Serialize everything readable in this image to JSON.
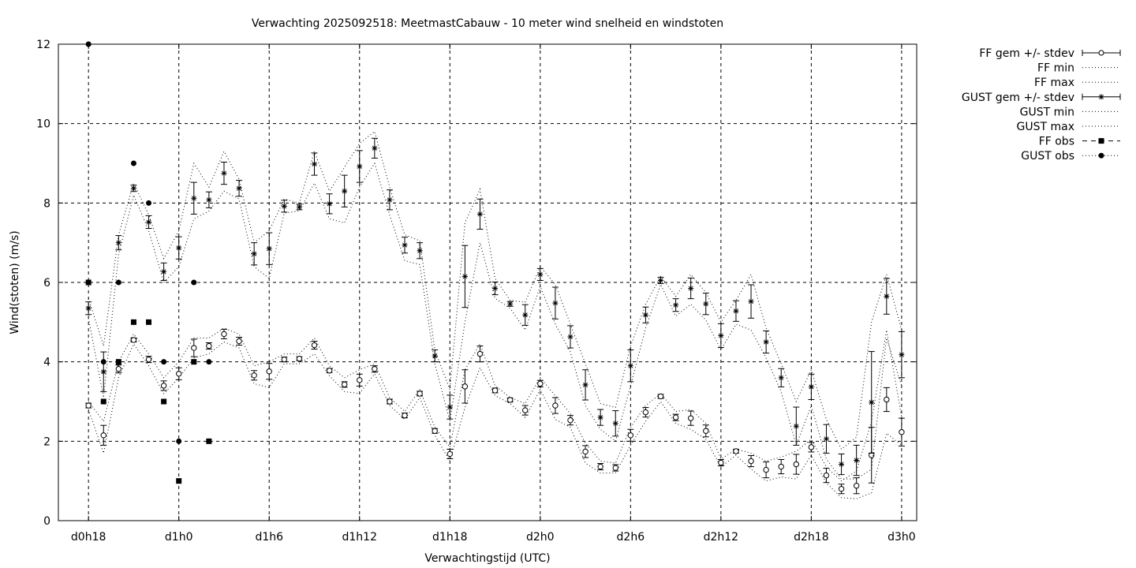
{
  "chart_data": {
    "type": "line",
    "title": "Verwachting 2025092518: MeetmastCabauw - 10 meter wind snelheid en windstoten",
    "xlabel": "Verwachtingstijd (UTC)",
    "ylabel": "Wind(stoten) (m/s)",
    "ylim": [
      0,
      12
    ],
    "xlim_hours": [
      -2,
      55
    ],
    "x_ticks": [
      {
        "hour": 0,
        "label": "d0h18"
      },
      {
        "hour": 6,
        "label": "d1h0"
      },
      {
        "hour": 12,
        "label": "d1h6"
      },
      {
        "hour": 18,
        "label": "d1h12"
      },
      {
        "hour": 24,
        "label": "d1h18"
      },
      {
        "hour": 30,
        "label": "d2h0"
      },
      {
        "hour": 36,
        "label": "d2h6"
      },
      {
        "hour": 42,
        "label": "d2h12"
      },
      {
        "hour": 48,
        "label": "d2h18"
      },
      {
        "hour": 54,
        "label": "d3h0"
      }
    ],
    "y_ticks": [
      0,
      2,
      4,
      6,
      8,
      10,
      12
    ],
    "grid": true,
    "legend_position": "outside-right",
    "x_unit": "hours since d0h18",
    "legend": [
      {
        "key": "ff_mean",
        "label": "FF gem +/- stdev"
      },
      {
        "key": "ff_min",
        "label": "FF min"
      },
      {
        "key": "ff_max",
        "label": "FF max"
      },
      {
        "key": "gust_mean",
        "label": "GUST gem +/- stdev"
      },
      {
        "key": "gust_min",
        "label": "GUST min"
      },
      {
        "key": "gust_max",
        "label": "GUST max"
      },
      {
        "key": "ff_obs",
        "label": "FF obs"
      },
      {
        "key": "gust_obs",
        "label": "GUST obs"
      }
    ],
    "ff": {
      "x": [
        0,
        1,
        2,
        3,
        4,
        5,
        6,
        7,
        8,
        9,
        10,
        11,
        12,
        13,
        14,
        15,
        16,
        17,
        18,
        19,
        20,
        21,
        22,
        23,
        24,
        25,
        26,
        27,
        28,
        29,
        30,
        31,
        32,
        33,
        34,
        35,
        36,
        37,
        38,
        39,
        40,
        41,
        42,
        43,
        44,
        45,
        46,
        47,
        48,
        49,
        50,
        51,
        52,
        53,
        54
      ],
      "mean": [
        2.9,
        2.15,
        3.82,
        4.55,
        4.06,
        3.4,
        3.7,
        4.35,
        4.4,
        4.7,
        4.52,
        3.66,
        3.76,
        4.06,
        4.08,
        4.42,
        3.78,
        3.43,
        3.54,
        3.82,
        3.0,
        2.65,
        3.2,
        2.26,
        1.68,
        3.38,
        4.2,
        3.28,
        3.04,
        2.78,
        3.45,
        2.9,
        2.53,
        1.74,
        1.36,
        1.33,
        2.15,
        2.73,
        3.13,
        2.6,
        2.58,
        2.26,
        1.46,
        1.75,
        1.5,
        1.28,
        1.36,
        1.42,
        1.85,
        1.14,
        0.8,
        0.88,
        1.65,
        3.05,
        2.23
      ],
      "stdev": [
        0.06,
        0.25,
        0.1,
        0.05,
        0.08,
        0.12,
        0.15,
        0.22,
        0.08,
        0.12,
        0.1,
        0.12,
        0.2,
        0.06,
        0.05,
        0.1,
        0.05,
        0.07,
        0.15,
        0.08,
        0.06,
        0.06,
        0.06,
        0.06,
        0.12,
        0.42,
        0.2,
        0.06,
        0.05,
        0.12,
        0.08,
        0.2,
        0.12,
        0.15,
        0.08,
        0.08,
        0.15,
        0.12,
        0.05,
        0.08,
        0.18,
        0.15,
        0.08,
        0.05,
        0.14,
        0.2,
        0.18,
        0.25,
        0.12,
        0.18,
        0.12,
        0.2,
        0.7,
        0.3,
        0.35
      ],
      "min": [
        2.8,
        1.7,
        3.6,
        4.45,
        3.9,
        3.2,
        3.6,
        4.1,
        4.2,
        4.5,
        4.35,
        3.45,
        3.35,
        3.95,
        3.95,
        4.2,
        3.65,
        3.25,
        3.2,
        3.7,
        2.9,
        2.55,
        3.1,
        2.15,
        1.5,
        2.85,
        3.85,
        3.15,
        2.95,
        2.6,
        3.3,
        2.55,
        2.35,
        1.45,
        1.2,
        1.2,
        1.9,
        2.5,
        3.0,
        2.45,
        2.3,
        2.05,
        1.35,
        1.65,
        1.3,
        1.0,
        1.1,
        1.05,
        1.65,
        0.95,
        0.58,
        0.55,
        0.7,
        2.2,
        1.9
      ],
      "max": [
        3.0,
        2.5,
        4.0,
        4.7,
        4.2,
        3.6,
        4.0,
        4.6,
        4.6,
        4.85,
        4.7,
        3.9,
        4.0,
        4.2,
        4.2,
        4.6,
        3.9,
        3.6,
        3.8,
        3.95,
        3.1,
        2.75,
        3.3,
        2.35,
        1.85,
        3.8,
        4.45,
        3.4,
        3.1,
        2.95,
        3.6,
        3.15,
        2.7,
        1.95,
        1.5,
        1.45,
        2.35,
        2.9,
        3.2,
        2.75,
        2.8,
        2.45,
        1.55,
        1.8,
        1.7,
        1.5,
        1.6,
        1.75,
        2.05,
        1.35,
        1.0,
        1.25,
        2.5,
        4.8,
        2.6
      ]
    },
    "gust": {
      "x": [
        0,
        1,
        2,
        3,
        4,
        5,
        6,
        7,
        8,
        9,
        10,
        11,
        12,
        13,
        14,
        15,
        16,
        17,
        18,
        19,
        20,
        21,
        22,
        23,
        24,
        25,
        26,
        27,
        28,
        29,
        30,
        31,
        32,
        33,
        34,
        35,
        36,
        37,
        38,
        39,
        40,
        41,
        42,
        43,
        44,
        45,
        46,
        47,
        48,
        49,
        50,
        51,
        52,
        53,
        54
      ],
      "mean": [
        5.35,
        3.75,
        7.0,
        8.37,
        7.52,
        6.27,
        6.87,
        8.12,
        8.08,
        8.75,
        8.37,
        6.72,
        6.85,
        7.92,
        7.9,
        8.98,
        7.98,
        8.3,
        8.92,
        9.38,
        8.08,
        6.94,
        6.8,
        4.15,
        2.86,
        6.15,
        7.72,
        5.85,
        5.46,
        5.18,
        6.2,
        5.48,
        4.63,
        3.42,
        2.6,
        2.45,
        3.9,
        5.18,
        6.05,
        5.43,
        5.85,
        5.46,
        4.66,
        5.28,
        5.52,
        4.5,
        3.6,
        2.38,
        3.37,
        2.06,
        1.42,
        1.52,
        2.98,
        5.65,
        4.18
      ],
      "stdev": [
        0.16,
        0.5,
        0.18,
        0.08,
        0.16,
        0.22,
        0.28,
        0.4,
        0.2,
        0.28,
        0.2,
        0.28,
        0.4,
        0.15,
        0.07,
        0.28,
        0.25,
        0.4,
        0.4,
        0.25,
        0.25,
        0.2,
        0.2,
        0.15,
        0.3,
        0.78,
        0.38,
        0.16,
        0.06,
        0.26,
        0.15,
        0.4,
        0.28,
        0.38,
        0.2,
        0.32,
        0.4,
        0.2,
        0.08,
        0.16,
        0.26,
        0.27,
        0.3,
        0.26,
        0.42,
        0.28,
        0.23,
        0.48,
        0.32,
        0.36,
        0.26,
        0.38,
        1.28,
        0.45,
        0.58
      ],
      "min": [
        5.1,
        3.1,
        6.7,
        8.2,
        7.3,
        6.0,
        6.4,
        7.6,
        7.8,
        8.3,
        8.1,
        6.4,
        6.1,
        7.75,
        7.8,
        8.5,
        7.6,
        7.5,
        8.4,
        9.0,
        7.7,
        6.55,
        6.45,
        3.95,
        2.5,
        5.0,
        7.0,
        5.6,
        5.35,
        4.8,
        5.9,
        4.95,
        4.25,
        2.9,
        2.3,
        2.0,
        3.4,
        4.85,
        5.95,
        5.15,
        5.45,
        5.05,
        4.3,
        4.95,
        4.8,
        4.1,
        3.25,
        1.9,
        2.9,
        1.55,
        1.05,
        1.05,
        1.3,
        4.6,
        3.4
      ],
      "max": [
        5.6,
        4.4,
        7.2,
        8.5,
        7.7,
        6.6,
        7.3,
        9.0,
        8.4,
        9.3,
        8.6,
        7.0,
        7.3,
        8.1,
        8.0,
        9.3,
        8.3,
        8.9,
        9.5,
        9.8,
        8.4,
        7.2,
        7.05,
        4.3,
        3.3,
        7.5,
        8.35,
        6.1,
        5.55,
        5.5,
        6.4,
        5.95,
        4.95,
        3.95,
        2.95,
        2.85,
        4.4,
        5.45,
        6.15,
        5.65,
        6.2,
        5.75,
        5.0,
        5.55,
        6.2,
        4.85,
        3.95,
        3.0,
        3.8,
        2.55,
        1.8,
        2.1,
        5.0,
        6.2,
        4.8
      ]
    },
    "ff_obs": {
      "x": [
        0,
        1,
        2,
        3,
        4,
        5,
        6,
        7,
        8
      ],
      "values": [
        6,
        3,
        4,
        5,
        5,
        3,
        1,
        4,
        2
      ]
    },
    "gust_obs": {
      "x": [
        0,
        1,
        2,
        3,
        4,
        5,
        6,
        7,
        8
      ],
      "values": [
        12,
        4,
        6,
        9,
        8,
        4,
        2,
        6,
        4
      ]
    }
  }
}
